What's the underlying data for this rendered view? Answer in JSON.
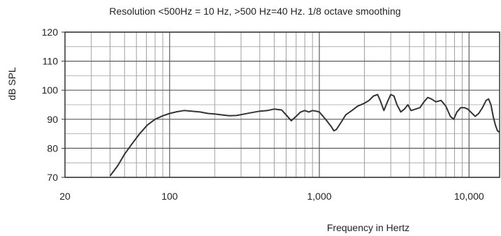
{
  "chart_data": {
    "type": "line",
    "title": "Resolution <500Hz = 10 Hz, >500 Hz=40 Hz. 1/8 octave smoothing",
    "xlabel": "Frequency in Hertz",
    "ylabel": "dB SPL",
    "x_scale": "log",
    "xlim": [
      20,
      16000
    ],
    "ylim": [
      70,
      120
    ],
    "x_ticks": [
      {
        "value": 20,
        "label": "20"
      },
      {
        "value": 100,
        "label": "100"
      },
      {
        "value": 1000,
        "label": "1,000"
      },
      {
        "value": 10000,
        "label": "10,000"
      }
    ],
    "y_ticks": [
      70,
      80,
      90,
      100,
      110,
      120
    ],
    "grid": true,
    "legend": "none",
    "colors": {
      "line": "#333333",
      "grid": "#5a5a5a",
      "minor_grid": "#a0a0a0",
      "frame": "#333333"
    },
    "series": [
      {
        "points": [
          [
            40,
            70.5
          ],
          [
            45,
            74
          ],
          [
            50,
            78
          ],
          [
            56,
            81.5
          ],
          [
            63,
            85
          ],
          [
            71,
            88
          ],
          [
            80,
            90
          ],
          [
            90,
            91.2
          ],
          [
            100,
            92
          ],
          [
            112,
            92.6
          ],
          [
            125,
            93
          ],
          [
            140,
            92.8
          ],
          [
            160,
            92.5
          ],
          [
            180,
            92
          ],
          [
            200,
            91.8
          ],
          [
            225,
            91.5
          ],
          [
            250,
            91.2
          ],
          [
            280,
            91.3
          ],
          [
            315,
            91.8
          ],
          [
            355,
            92.3
          ],
          [
            400,
            92.8
          ],
          [
            450,
            93
          ],
          [
            500,
            93.5
          ],
          [
            560,
            93.2
          ],
          [
            600,
            91.5
          ],
          [
            650,
            89.5
          ],
          [
            700,
            91
          ],
          [
            750,
            92.5
          ],
          [
            800,
            93
          ],
          [
            850,
            92.5
          ],
          [
            900,
            93
          ],
          [
            950,
            92.8
          ],
          [
            1000,
            92.5
          ],
          [
            1100,
            90
          ],
          [
            1200,
            87.5
          ],
          [
            1250,
            86
          ],
          [
            1300,
            86.5
          ],
          [
            1400,
            89
          ],
          [
            1500,
            91.5
          ],
          [
            1650,
            93
          ],
          [
            1800,
            94.5
          ],
          [
            2000,
            95.5
          ],
          [
            2150,
            96.5
          ],
          [
            2300,
            98
          ],
          [
            2450,
            98.5
          ],
          [
            2550,
            96.5
          ],
          [
            2700,
            93
          ],
          [
            2850,
            96
          ],
          [
            3000,
            98.5
          ],
          [
            3150,
            98
          ],
          [
            3300,
            95
          ],
          [
            3500,
            92.5
          ],
          [
            3700,
            93.5
          ],
          [
            3900,
            95
          ],
          [
            4100,
            93
          ],
          [
            4400,
            93.5
          ],
          [
            4700,
            94
          ],
          [
            5000,
            96
          ],
          [
            5300,
            97.5
          ],
          [
            5600,
            97
          ],
          [
            6000,
            96
          ],
          [
            6500,
            96.5
          ],
          [
            7000,
            94.5
          ],
          [
            7500,
            91
          ],
          [
            7900,
            90
          ],
          [
            8300,
            92.5
          ],
          [
            8800,
            94
          ],
          [
            9300,
            94
          ],
          [
            9800,
            93.5
          ],
          [
            10500,
            92
          ],
          [
            11000,
            91
          ],
          [
            11600,
            92
          ],
          [
            12300,
            94
          ],
          [
            13000,
            96.5
          ],
          [
            13500,
            97
          ],
          [
            14000,
            95
          ],
          [
            14500,
            91
          ],
          [
            15000,
            88
          ],
          [
            15500,
            86
          ],
          [
            16000,
            85.5
          ]
        ]
      }
    ]
  }
}
